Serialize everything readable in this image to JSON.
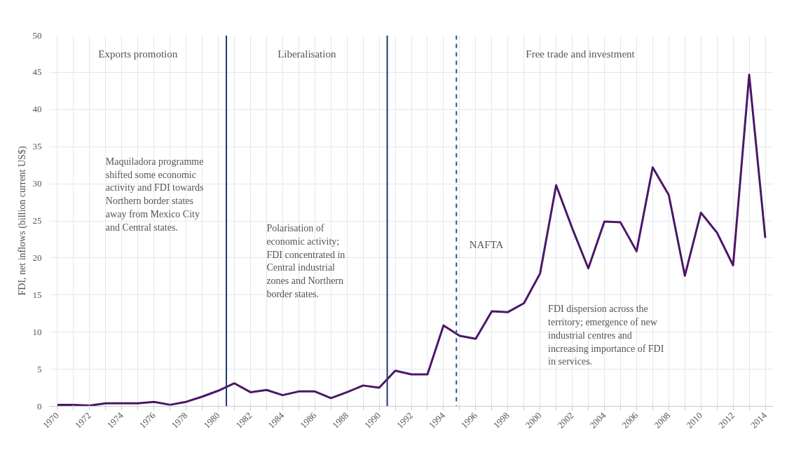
{
  "chart_data": {
    "type": "line",
    "ylabel": "FDI, net inflows (billion current US$)",
    "x": [
      1970,
      1971,
      1972,
      1973,
      1974,
      1975,
      1976,
      1977,
      1978,
      1979,
      1980,
      1981,
      1982,
      1983,
      1984,
      1985,
      1986,
      1987,
      1988,
      1989,
      1990,
      1991,
      1992,
      1993,
      1994,
      1995,
      1996,
      1997,
      1998,
      1999,
      2000,
      2001,
      2002,
      2003,
      2004,
      2005,
      2006,
      2007,
      2008,
      2009,
      2010,
      2011,
      2012,
      2013,
      2014
    ],
    "series": [
      {
        "color": "#4b1768",
        "values": [
          0.2,
          0.2,
          0.1,
          0.4,
          0.4,
          0.4,
          0.6,
          0.2,
          0.6,
          1.3,
          2.1,
          3.1,
          1.9,
          2.2,
          1.5,
          2.0,
          2.0,
          1.1,
          1.9,
          2.8,
          2.5,
          4.8,
          4.3,
          4.3,
          10.9,
          9.5,
          9.1,
          12.8,
          12.7,
          13.9,
          17.9,
          29.8,
          24.0,
          18.6,
          24.9,
          24.8,
          20.9,
          32.2,
          28.5,
          17.6,
          26.1,
          23.4,
          19.0,
          44.7,
          22.7
        ]
      }
    ],
    "xlim": [
      1969.5,
      2014.5
    ],
    "ylim": [
      0,
      50
    ],
    "xticks": [
      1970,
      {
        "value": 1971,
        "label": null
      },
      1972,
      {
        "value": 1973,
        "label": null
      },
      1974,
      {
        "value": 1975,
        "label": null
      },
      1976,
      {
        "value": 1977,
        "label": null
      },
      1978,
      {
        "value": 1979,
        "label": null
      },
      1980,
      {
        "value": 1981,
        "label": null
      },
      1982,
      {
        "value": 1983,
        "label": null
      },
      1984,
      {
        "value": 1985,
        "label": null
      },
      1986,
      {
        "value": 1987,
        "label": null
      },
      1988,
      {
        "value": 1989,
        "label": null
      },
      1990,
      {
        "value": 1991,
        "label": null
      },
      1992,
      {
        "value": 1993,
        "label": null
      },
      1994,
      {
        "value": 1995,
        "label": null
      },
      1996,
      {
        "value": 1997,
        "label": null
      },
      1998,
      {
        "value": 1999,
        "label": null
      },
      2000,
      {
        "value": 2001,
        "label": null
      },
      2002,
      {
        "value": 2003,
        "label": null
      },
      2004,
      {
        "value": 2005,
        "label": null
      },
      2006,
      {
        "value": 2007,
        "label": null
      },
      2008,
      {
        "value": 2009,
        "label": null
      },
      2010,
      {
        "value": 2011,
        "label": null
      },
      2012,
      {
        "value": 2013,
        "label": null
      },
      2014
    ],
    "yticks": [
      0,
      5,
      10,
      15,
      20,
      25,
      30,
      35,
      40,
      45,
      50
    ],
    "grid": true,
    "marker": "none",
    "line_style": "solid",
    "ref_lines": [
      {
        "axis": "x",
        "value": 1980.5,
        "color": "#1f3b70",
        "line_style": "solid"
      },
      {
        "axis": "x",
        "value": 1990.5,
        "color": "#1f3b70",
        "line_style": "solid"
      },
      {
        "axis": "x",
        "value": 1994.8,
        "label": "NAFTA",
        "color": "#2a5580",
        "line_style": "dashed"
      }
    ],
    "annotations": [
      "Exports promotion",
      "Liberalisation",
      "Free trade and investment",
      "Maquiladora programme\nshifted some economic\nactivity and FDI towards\nNorthern border states\naway from Mexico City\nand Central states.",
      "Polarisation of\neconomic activity;\nFDI concentrated in\nCentral industrial\nzones and Northern\nborder states.",
      "FDI dispersion across the\nterritory; emergence of new\nindustrial centres and\nincreasing importance of FDI\nin services."
    ]
  }
}
